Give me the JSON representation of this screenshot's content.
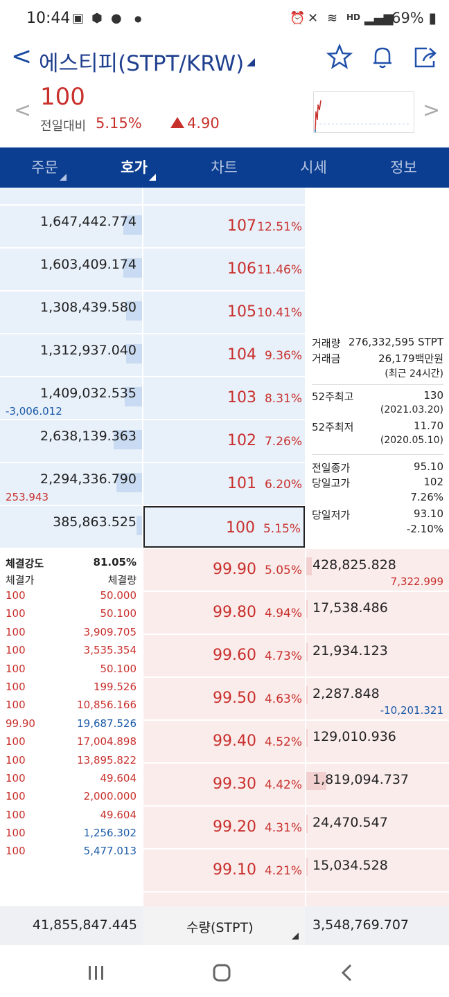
{
  "status": {
    "time": "10:44",
    "battery": "69%",
    "hd_label": "HD"
  },
  "header": {
    "title": "에스티피(STPT/KRW)",
    "icons": [
      "star-icon",
      "bell-icon",
      "share-icon"
    ]
  },
  "quote": {
    "price": "100",
    "change_label": "전일대비",
    "change_pct": "5.15%",
    "change_amt": "4.90"
  },
  "tabs": [
    {
      "label": "주문"
    },
    {
      "label": "호가"
    },
    {
      "label": "차트"
    },
    {
      "label": "시세"
    },
    {
      "label": "정보"
    }
  ],
  "asks": [
    {
      "vol": "1,647,442.774",
      "price": "107",
      "pct": "12.51%",
      "diff": "",
      "fill": 0.13
    },
    {
      "vol": "1,603,409.174",
      "price": "106",
      "pct": "11.46%",
      "diff": "",
      "fill": 0.13
    },
    {
      "vol": "1,308,439.580",
      "price": "105",
      "pct": "10.41%",
      "diff": "",
      "fill": 0.11
    },
    {
      "vol": "1,312,937.040",
      "price": "104",
      "pct": "9.36%",
      "diff": "",
      "fill": 0.11
    },
    {
      "vol": "1,409,032.535",
      "price": "103",
      "pct": "8.31%",
      "diff": "-3,006.012",
      "fill": 0.12
    },
    {
      "vol": "2,638,139.363",
      "price": "102",
      "pct": "7.26%",
      "diff": "",
      "fill": 0.2
    },
    {
      "vol": "2,294,336.790",
      "price": "101",
      "pct": "6.20%",
      "diff": "253.943",
      "fill": 0.18
    },
    {
      "vol": "385,863.525",
      "price": "100",
      "pct": "5.15%",
      "diff": "",
      "fill": 0.04
    }
  ],
  "bids": [
    {
      "price": "99.90",
      "pct": "5.05%",
      "vol": "428,825.828",
      "diff": "7,322.999",
      "fill": 0.04
    },
    {
      "price": "99.80",
      "pct": "4.94%",
      "vol": "17,538.486",
      "diff": "",
      "fill": 0.0
    },
    {
      "price": "99.60",
      "pct": "4.73%",
      "vol": "21,934.123",
      "diff": "",
      "fill": 0.0
    },
    {
      "price": "99.50",
      "pct": "4.63%",
      "vol": "2,287.848",
      "diff": "-10,201.321",
      "fill": 0.0
    },
    {
      "price": "99.40",
      "pct": "4.52%",
      "vol": "129,010.936",
      "diff": "",
      "fill": 0.01
    },
    {
      "price": "99.30",
      "pct": "4.42%",
      "vol": "1,819,094.737",
      "diff": "",
      "fill": 0.14
    },
    {
      "price": "99.20",
      "pct": "4.31%",
      "vol": "24,470.547",
      "diff": "",
      "fill": 0.0
    },
    {
      "price": "99.10",
      "pct": "4.21%",
      "vol": "15,034.528",
      "diff": "",
      "fill": 0.0
    }
  ],
  "info": {
    "vol_label": "거래량",
    "vol_value": "276,332,595 STPT",
    "amt_label": "거래금",
    "amt_value": "26,179백만원",
    "period": "(최근 24시간)",
    "high52_label": "52주최고",
    "high52": "130",
    "high52_date": "(2021.03.20)",
    "low52_label": "52주최저",
    "low52": "11.70",
    "low52_date": "(2020.05.10)",
    "prev_label": "전일종가",
    "prev": "95.10",
    "dayhigh_label": "당일고가",
    "dayhigh": "102",
    "dayhigh_pct": "7.26%",
    "daylow_label": "당일저가",
    "daylow": "93.10",
    "daylow_pct": "-2.10%"
  },
  "trades": {
    "strength_label": "체결강도",
    "strength": "81.05%",
    "price_header": "체결가",
    "qty_header": "체결량",
    "rows": [
      {
        "p": "100",
        "q": "50.000",
        "c": "red"
      },
      {
        "p": "100",
        "q": "50.100",
        "c": "red"
      },
      {
        "p": "100",
        "q": "3,909.705",
        "c": "red"
      },
      {
        "p": "100",
        "q": "3,535.354",
        "c": "red"
      },
      {
        "p": "100",
        "q": "50.100",
        "c": "red"
      },
      {
        "p": "100",
        "q": "199.526",
        "c": "red"
      },
      {
        "p": "100",
        "q": "10,856.166",
        "c": "red"
      },
      {
        "p": "99.90",
        "q": "19,687.526",
        "c": "blue"
      },
      {
        "p": "100",
        "q": "17,004.898",
        "c": "red"
      },
      {
        "p": "100",
        "q": "13,895.822",
        "c": "red"
      },
      {
        "p": "100",
        "q": "49.604",
        "c": "red"
      },
      {
        "p": "100",
        "q": "2,000.000",
        "c": "red"
      },
      {
        "p": "100",
        "q": "49.604",
        "c": "red"
      },
      {
        "p": "100",
        "q": "1,256.302",
        "c": "blue"
      },
      {
        "p": "100",
        "q": "5,477.013",
        "c": "blue"
      }
    ]
  },
  "footer": {
    "ask_total": "41,855,847.445",
    "unit_label": "수량(STPT)",
    "bid_total": "3,548,769.707"
  }
}
